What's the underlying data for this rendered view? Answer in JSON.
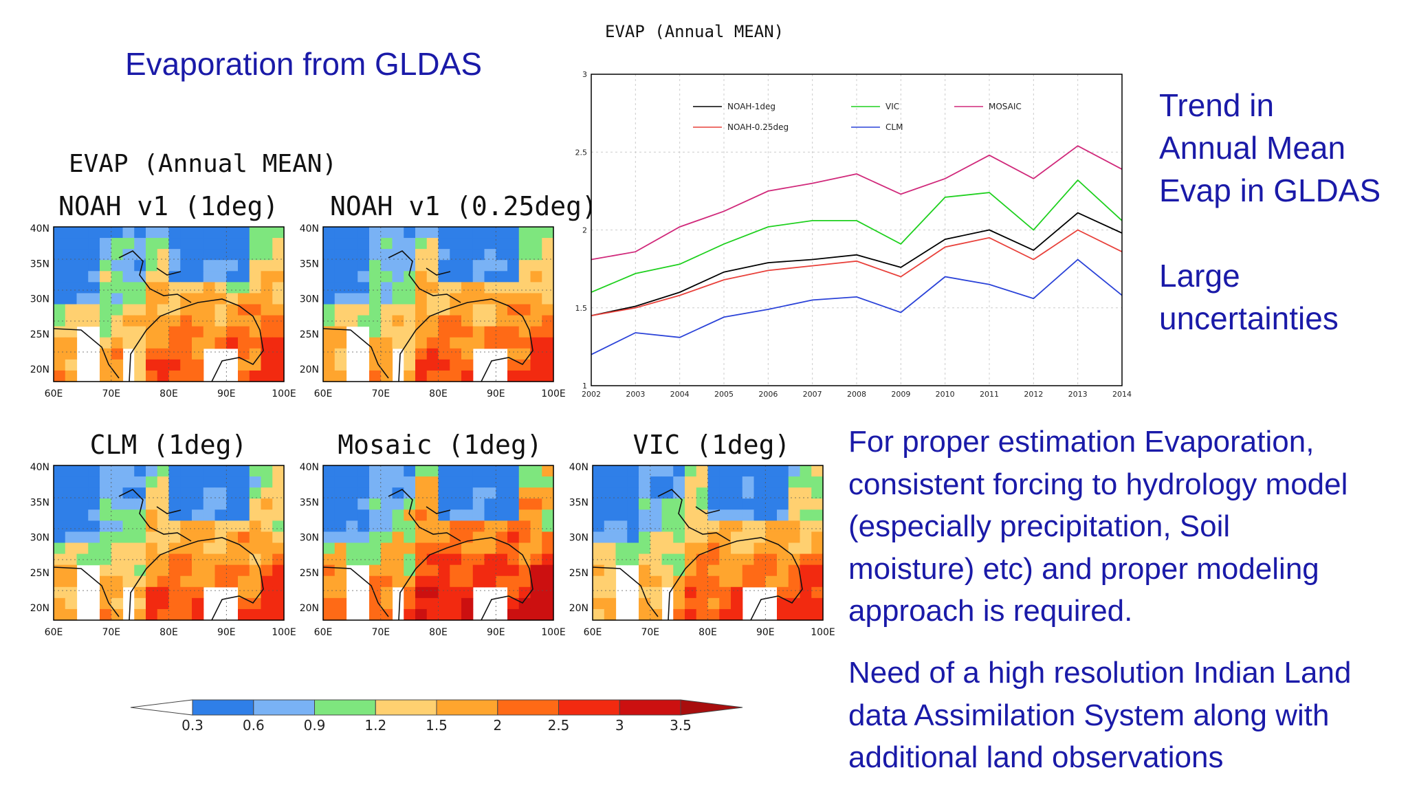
{
  "slide": {
    "title": "Evaporation from GLDAS",
    "maps_heading": "EVAP (Annual MEAN)",
    "right_note_1": [
      "Trend in",
      "Annual Mean",
      "Evap in GLDAS"
    ],
    "right_note_2": [
      "Large",
      "uncertainties"
    ],
    "paragraph_1": [
      "For proper estimation Evaporation,",
      "consistent forcing to hydrology model",
      "(especially precipitation, Soil",
      "moisture) etc) and proper modeling",
      "approach is required."
    ],
    "paragraph_2": [
      "Need of a high resolution Indian Land",
      "data Assimilation System along with",
      "additional land observations"
    ]
  },
  "maps": [
    {
      "title": "NOAH v1 (1deg)"
    },
    {
      "title": "NOAH v1 (0.25deg)"
    },
    {
      "title": "CLM (1deg)"
    },
    {
      "title": "Mosaic (1deg)"
    },
    {
      "title": "VIC (1deg)"
    }
  ],
  "map_axes": {
    "lat_labels": [
      "40N",
      "35N",
      "30N",
      "25N",
      "20N"
    ],
    "lon_labels": [
      "60E",
      "70E",
      "80E",
      "90E",
      "100E"
    ]
  },
  "colorbar": {
    "labels": [
      "0.3",
      "0.6",
      "0.9",
      "1.2",
      "1.5",
      "2",
      "2.5",
      "3",
      "3.5"
    ],
    "colors": [
      "#ffffff",
      "#2f7fe8",
      "#79b2f5",
      "#7ee67e",
      "#ffd070",
      "#ffa52e",
      "#ff6a16",
      "#f22a10",
      "#cc1010",
      "#a80e0e"
    ]
  },
  "chart_data": {
    "type": "line",
    "title": "EVAP (Annual MEAN)",
    "xlabel": "",
    "ylabel": "",
    "x": [
      2002,
      2003,
      2004,
      2005,
      2006,
      2007,
      2008,
      2009,
      2010,
      2011,
      2012,
      2013,
      2014
    ],
    "xlim": [
      2002,
      2014
    ],
    "ylim": [
      1,
      3
    ],
    "yticks": [
      "1",
      "1.5",
      "2",
      "2.5",
      "3"
    ],
    "grid": true,
    "legend_placement": "top",
    "series": [
      {
        "name": "NOAH-1deg",
        "color": "#000000",
        "values": [
          1.45,
          1.51,
          1.6,
          1.73,
          1.79,
          1.81,
          1.84,
          1.76,
          1.94,
          2.0,
          1.87,
          2.11,
          1.98
        ]
      },
      {
        "name": "NOAH-0.25deg",
        "color": "#e8403a",
        "values": [
          1.45,
          1.5,
          1.58,
          1.68,
          1.74,
          1.77,
          1.8,
          1.7,
          1.89,
          1.95,
          1.81,
          2.0,
          1.86
        ]
      },
      {
        "name": "VIC",
        "color": "#1ed01e",
        "values": [
          1.6,
          1.72,
          1.78,
          1.91,
          2.02,
          2.06,
          2.06,
          1.91,
          2.21,
          2.24,
          2.0,
          2.32,
          2.06
        ]
      },
      {
        "name": "CLM",
        "color": "#2a42d8",
        "values": [
          1.2,
          1.34,
          1.31,
          1.44,
          1.49,
          1.55,
          1.57,
          1.47,
          1.7,
          1.65,
          1.56,
          1.81,
          1.58
        ]
      },
      {
        "name": "MOSAIC",
        "color": "#d0287a",
        "values": [
          1.81,
          1.86,
          2.02,
          2.12,
          2.25,
          2.3,
          2.36,
          2.23,
          2.33,
          2.48,
          2.33,
          2.54,
          2.39
        ]
      }
    ]
  }
}
